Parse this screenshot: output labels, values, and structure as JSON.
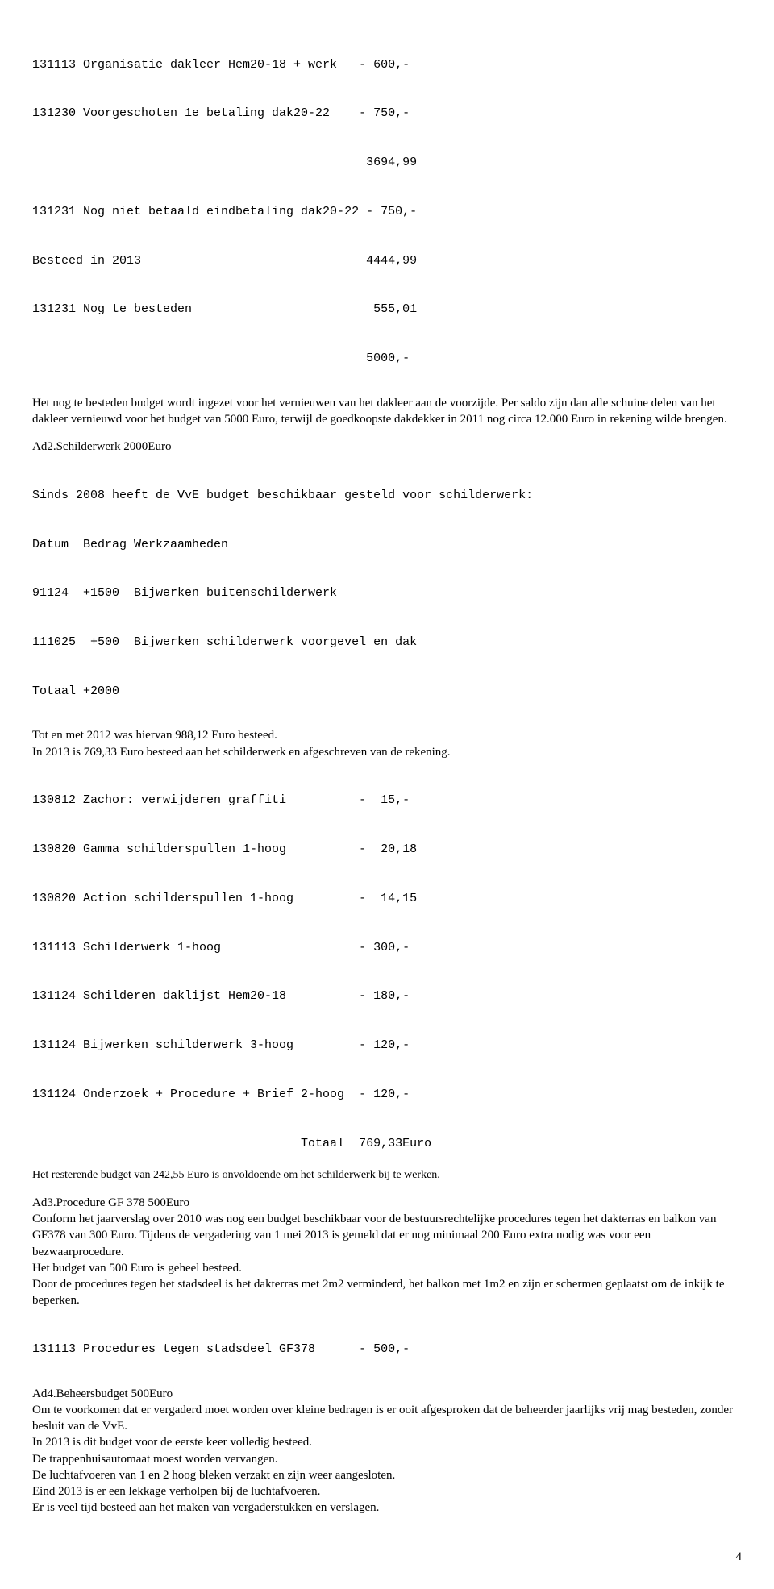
{
  "topLedger": {
    "lines": [
      "131113 Organisatie dakleer Hem20-18 + werk   - 600,-",
      "131230 Voorgeschoten 1e betaling dak20-22    - 750,-",
      "                                              3694,99",
      "131231 Nog niet betaald eindbetaling dak20-22 - 750,-",
      "Besteed in 2013                               4444,99",
      "131231 Nog te besteden                         555,01",
      "                                              5000,-"
    ]
  },
  "introPara": "Het nog te besteden budget wordt ingezet voor het vernieuwen van het dakleer aan de voorzijde. Per saldo zijn dan alle schuine delen van het dakleer vernieuwd voor het budget van 5000 Euro, terwijl de goedkoopste dakdekker in 2011 nog circa 12.000 Euro in rekening wilde brengen.",
  "ad2": {
    "heading": "Ad2.Schilderwerk 2000Euro",
    "preLines": [
      "Sinds 2008 heeft de VvE budget beschikbaar gesteld voor schilderwerk:",
      "Datum  Bedrag Werkzaamheden",
      "91124  +1500  Bijwerken buitenschilderwerk",
      "111025  +500  Bijwerken schilderwerk voorgevel en dak",
      "Totaal +2000"
    ],
    "line1": "Tot en met 2012 was hiervan 988,12 Euro besteed.",
    "line2": "In 2013 is 769,33 Euro besteed aan het schilderwerk en afgeschreven van de rekening.",
    "ledger": [
      "130812 Zachor: verwijderen graffiti          -  15,-",
      "130820 Gamma schilderspullen 1-hoog          -  20,18",
      "130820 Action schilderspullen 1-hoog         -  14,15",
      "131113 Schilderwerk 1-hoog                   - 300,-",
      "131124 Schilderen daklijst Hem20-18          - 180,-",
      "131124 Bijwerken schilderwerk 3-hoog         - 120,-",
      "131124 Onderzoek + Procedure + Brief 2-hoog  - 120,-",
      "                                     Totaal  769,33Euro"
    ],
    "note": "Het resterende budget van 242,55 Euro is onvoldoende om het schilderwerk bij te werken."
  },
  "ad3": {
    "heading": "Ad3.Procedure GF 378  500Euro",
    "p1": "Conform het jaarverslag over 2010 was nog een budget beschikbaar voor de bestuursrechtelijke procedures tegen het dakterras en balkon van GF378  van 300 Euro. Tijdens de vergadering van 1 mei 2013 is gemeld dat er nog minimaal 200 Euro extra nodig was voor een bezwaarprocedure.",
    "p2": "Het budget van 500 Euro is geheel besteed.",
    "p3": "Door de procedures tegen het stadsdeel is het dakterras met 2m2 verminderd, het balkon met 1m2 en zijn er schermen geplaatst om de inkijk te beperken.",
    "ledger": "131113 Procedures tegen stadsdeel GF378      - 500,-"
  },
  "ad4": {
    "heading": "Ad4.Beheersbudget 500Euro",
    "p1": "Om te voorkomen dat er vergaderd moet worden over kleine bedragen is er ooit afgesproken dat de beheerder jaarlijks vrij mag besteden, zonder besluit van de VvE.",
    "p2": "In 2013 is dit budget voor de eerste keer volledig besteed.",
    "p3": "De trappenhuisautomaat moest worden vervangen.",
    "p4": "De luchtafvoeren van 1 en 2 hoog bleken verzakt en zijn weer aangesloten.",
    "p5": "Eind 2013 is er een lekkage verholpen bij de luchtafvoeren.",
    "p6": "Er is veel tijd besteed aan het maken van vergaderstukken en verslagen."
  },
  "pageNumber": "4"
}
